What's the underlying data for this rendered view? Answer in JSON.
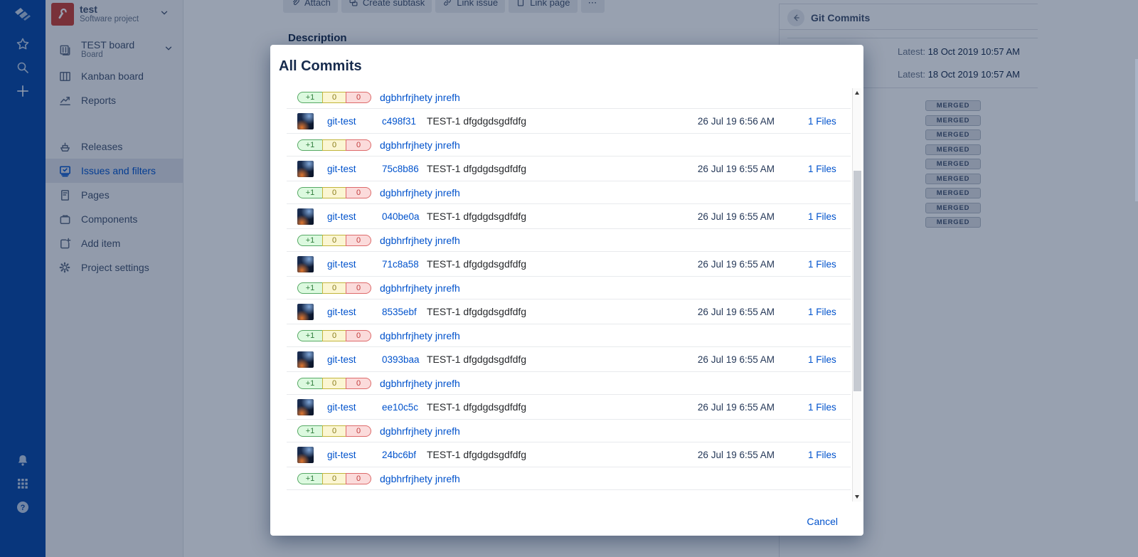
{
  "colors": {
    "accent_blue": "#0052CC",
    "navbar_bg": "#0747A6",
    "project_avatar_red": "#CA3F33",
    "stats_added": {
      "bg": "#DCF9DF",
      "border": "#56A964",
      "text": "#2E7D3B"
    },
    "stats_modified": {
      "bg": "#FBF6D3",
      "border": "#C2B53B",
      "text": "#8A7D1A"
    },
    "stats_deleted": {
      "bg": "#FBDBDB",
      "border": "#DD6A6A",
      "text": "#C13B3B"
    }
  },
  "nav_rail": {
    "top_icons": [
      "jira-logo-icon",
      "star-icon",
      "search-icon",
      "create-icon"
    ],
    "bottom_icons": [
      "notifications-icon",
      "app-switcher-icon",
      "help-icon",
      "settings-icon"
    ]
  },
  "sidebar": {
    "project_name": "test",
    "project_type": "Software project",
    "groups": [
      [
        {
          "label": "TEST board",
          "sublabel": "Board",
          "icon": "board-icon",
          "chevron": true
        },
        {
          "label": "Kanban board",
          "icon": "kanban-icon"
        },
        {
          "label": "Reports",
          "icon": "reports-icon"
        }
      ],
      [
        {
          "label": "Releases",
          "icon": "releases-icon"
        },
        {
          "label": "Issues and filters",
          "icon": "issues-icon",
          "active": true
        },
        {
          "label": "Pages",
          "icon": "pages-icon"
        },
        {
          "label": "Components",
          "icon": "components-icon"
        },
        {
          "label": "Add item",
          "icon": "add-item-icon"
        },
        {
          "label": "Project settings",
          "icon": "gear-icon"
        }
      ]
    ]
  },
  "toolbar": {
    "buttons": [
      {
        "label": "Attach",
        "icon": "attach-icon"
      },
      {
        "label": "Create subtask",
        "icon": "subtask-icon"
      },
      {
        "label": "Link issue",
        "icon": "link-icon"
      },
      {
        "label": "Link page",
        "icon": "page-icon"
      },
      {
        "label": "⋯",
        "icon": "more-icon"
      }
    ]
  },
  "content": {
    "description_label": "Description"
  },
  "git_panel": {
    "title": "Git Commits",
    "latest_rows": [
      {
        "label": "Latest:",
        "value": "18 Oct 2019 10:57 AM"
      },
      {
        "label": "Latest:",
        "value": "18 Oct 2019 10:57 AM"
      }
    ],
    "badges": [
      "MERGED",
      "MERGED",
      "MERGED",
      "MERGED",
      "MERGED",
      "MERGED",
      "MERGED",
      "MERGED",
      "MERGED"
    ]
  },
  "modal": {
    "title": "All Commits",
    "cancel_label": "Cancel",
    "author_link": "dgbhrfrjhety jnrefh",
    "repo_link": "git-test",
    "message": "TEST-1 dfgdgdsgdfdfg",
    "files_label": "1 Files",
    "stats": {
      "added": "+1",
      "modified": "0",
      "deleted": "0"
    },
    "commits": [
      {
        "hash": "c498f31",
        "date": "26 Jul 19 6:56 AM"
      },
      {
        "hash": "75c8b86",
        "date": "26 Jul 19 6:55 AM"
      },
      {
        "hash": "040be0a",
        "date": "26 Jul 19 6:55 AM"
      },
      {
        "hash": "71c8a58",
        "date": "26 Jul 19 6:55 AM"
      },
      {
        "hash": "8535ebf",
        "date": "26 Jul 19 6:55 AM"
      },
      {
        "hash": "0393baa",
        "date": "26 Jul 19 6:55 AM"
      },
      {
        "hash": "ee10c5c",
        "date": "26 Jul 19 6:55 AM"
      },
      {
        "hash": "24bc6bf",
        "date": "26 Jul 19 6:55 AM"
      }
    ],
    "trailing_stats_row": true
  }
}
